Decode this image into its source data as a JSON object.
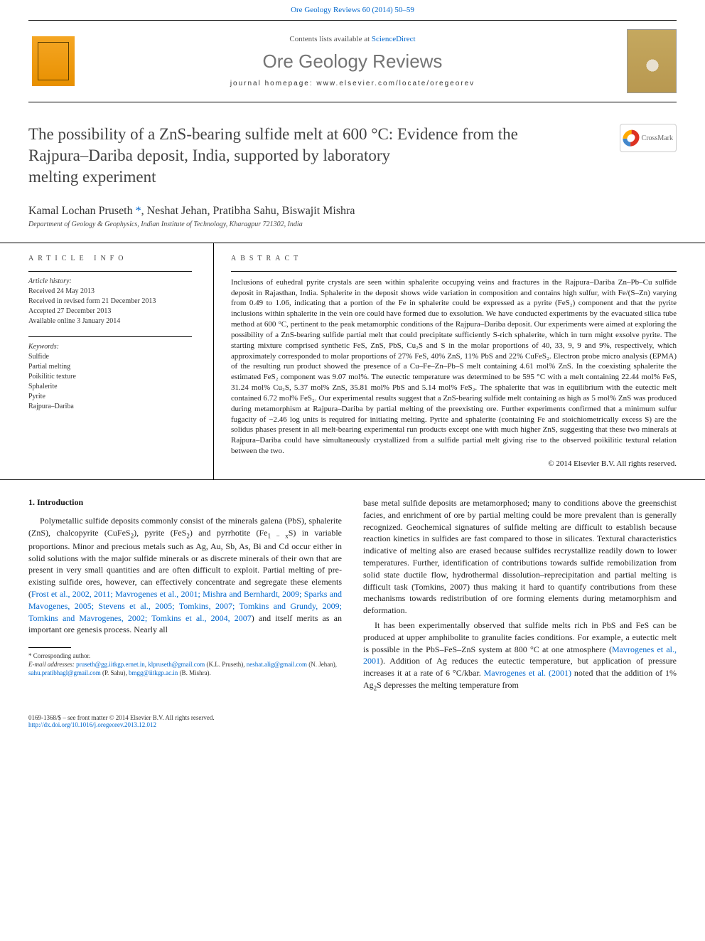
{
  "header": {
    "citation": "Ore Geology Reviews 60 (2014) 50–59",
    "contents_prefix": "Contents lists available at ",
    "contents_link": "ScienceDirect",
    "journal_title": "Ore Geology Reviews",
    "homepage_label": "journal homepage: www.elsevier.com/locate/oregeorev"
  },
  "crossmark_label": "CrossMark",
  "article": {
    "title_line1": "The possibility of a ZnS-bearing sulfide melt at 600 °C: Evidence from the",
    "title_line2": "Rajpura–Dariba deposit, India, supported by laboratory",
    "title_line3": "melting experiment",
    "authors_html": "Kamal Lochan Pruseth <span class='corresp'>*</span>, Neshat Jehan, Pratibha Sahu, Biswajit Mishra",
    "affiliation": "Department of Geology & Geophysics, Indian Institute of Technology, Kharagpur 721302, India"
  },
  "info": {
    "heading": "ARTICLE INFO",
    "history_label": "Article history:",
    "history": [
      "Received 24 May 2013",
      "Received in revised form 21 December 2013",
      "Accepted 27 December 2013",
      "Available online 3 January 2014"
    ],
    "keywords_label": "Keywords:",
    "keywords": [
      "Sulfide",
      "Partial melting",
      "Poikilitic texture",
      "Sphalerite",
      "Pyrite",
      "Rajpura–Dariba"
    ]
  },
  "abstract": {
    "heading": "ABSTRACT",
    "text": "Inclusions of euhedral pyrite crystals are seen within sphalerite occupying veins and fractures in the Rajpura–Dariba Zn–Pb–Cu sulfide deposit in Rajasthan, India. Sphalerite in the deposit shows wide variation in composition and contains high sulfur, with Fe/(S–Zn) varying from 0.49 to 1.06, indicating that a portion of the Fe in sphalerite could be expressed as a pyrite (FeS₂) component and that the pyrite inclusions within sphalerite in the vein ore could have formed due to exsolution. We have conducted experiments by the evacuated silica tube method at 600 °C, pertinent to the peak metamorphic conditions of the Rajpura–Dariba deposit. Our experiments were aimed at exploring the possibility of a ZnS-bearing sulfide partial melt that could precipitate sufficiently S-rich sphalerite, which in turn might exsolve pyrite. The starting mixture comprised synthetic FeS, ZnS, PbS, Cu₂S and S in the molar proportions of 40, 33, 9, 9 and 9%, respectively, which approximately corresponded to molar proportions of 27% FeS, 40% ZnS, 11% PbS and 22% CuFeS₂. Electron probe micro analysis (EPMA) of the resulting run product showed the presence of a Cu–Fe–Zn–Pb–S melt containing 4.61 mol% ZnS. In the coexisting sphalerite the estimated FeS₂ component was 9.07 mol%. The eutectic temperature was determined to be 595 °C with a melt containing 22.44 mol% FeS, 31.24 mol% Cu₂S, 5.37 mol% ZnS, 35.81 mol% PbS and 5.14 mol% FeS₂. The sphalerite that was in equilibrium with the eutectic melt contained 6.72 mol% FeS₂. Our experimental results suggest that a ZnS-bearing sulfide melt containing as high as 5 mol% ZnS was produced during metamorphism at Rajpura–Dariba by partial melting of the preexisting ore. Further experiments confirmed that a minimum sulfur fugacity of −2.46 log units is required for initiating melting. Pyrite and sphalerite (containing Fe and stoichiometrically excess S) are the solidus phases present in all melt-bearing experimental run products except one with much higher ZnS, suggesting that these two minerals at Rajpura–Dariba could have simultaneously crystallized from a sulfide partial melt giving rise to the observed poikilitic textural relation between the two.",
    "copyright": "© 2014 Elsevier B.V. All rights reserved."
  },
  "body": {
    "section1_heading": "1. Introduction",
    "left_p1_html": "Polymetallic sulfide deposits commonly consist of the minerals galena (PbS), sphalerite (ZnS), chalcopyrite (CuFeS<sub>2</sub>), pyrite (FeS<sub>2</sub>) and pyrrhotite (Fe<sub>1 − x</sub>S) in variable proportions. Minor and precious metals such as Ag, Au, Sb, As, Bi and Cd occur either in solid solutions with the major sulfide minerals or as discrete minerals of their own that are present in very small quantities and are often difficult to exploit. Partial melting of pre-existing sulfide ores, however, can effectively concentrate and segregate these elements (<a>Frost et al., 2002, 2011; Mavrogenes et al., 2001; Mishra and Bernhardt, 2009; Sparks and Mavogenes, 2005; Stevens et al., 2005; Tomkins, 2007; Tomkins and Grundy, 2009; Tomkins and Mavrogenes, 2002; Tomkins et al., 2004, 2007</a>) and itself merits as an important ore genesis process. Nearly all",
    "right_p1": "base metal sulfide deposits are metamorphosed; many to conditions above the greenschist facies, and enrichment of ore by partial melting could be more prevalent than is generally recognized. Geochemical signatures of sulfide melting are difficult to establish because reaction kinetics in sulfides are fast compared to those in silicates. Textural characteristics indicative of melting also are erased because sulfides recrystallize readily down to lower temperatures. Further, identification of contributions towards sulfide remobilization from solid state ductile flow, hydrothermal dissolution–reprecipitation and partial melting is difficult task (Tomkins, 2007) thus making it hard to quantify contributions from these mechanisms towards redistribution of ore forming elements during metamorphism and deformation.",
    "right_p2_html": "It has been experimentally observed that sulfide melts rich in PbS and FeS can be produced at upper amphibolite to granulite facies conditions. For example, a eutectic melt is possible in the PbS–FeS–ZnS system at 800 °C at one atmosphere (<a>Mavrogenes et al., 2001</a>). Addition of Ag reduces the eutectic temperature, but application of pressure increases it at a rate of 6 °C/kbar. <a>Mavrogenes et al. (2001)</a> noted that the addition of 1% Ag<sub>2</sub>S depresses the melting temperature from"
  },
  "footnotes": {
    "corresp": "* Corresponding author.",
    "emails_label": "E-mail addresses:",
    "emails_html": "<a>pruseth@gg.iitkgp.ernet.in</a>, <a>klpruseth@gmail.com</a> (K.L. Pruseth), <a>neshat.alig@gmail.com</a> (N. Jehan), <a>sahu.pratibhagl@gmail.com</a> (P. Sahu), <a>bmgg@iitkgp.ac.in</a> (B. Mishra)."
  },
  "footer": {
    "issn": "0169-1368/$ – see front matter © 2014 Elsevier B.V. All rights reserved.",
    "doi": "http://dx.doi.org/10.1016/j.oregeorev.2013.12.012"
  },
  "colors": {
    "link": "#0066cc",
    "text": "#222222",
    "border": "#000000"
  }
}
